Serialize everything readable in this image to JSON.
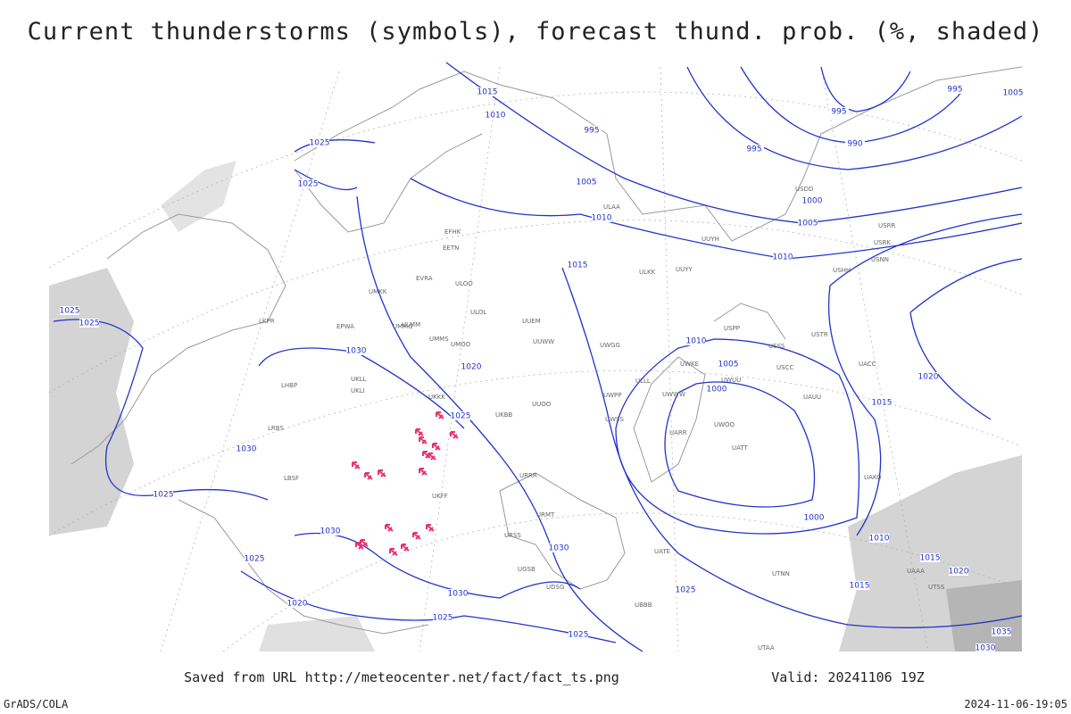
{
  "title": "Current thunderstorms (symbols), forecast thund. prob. (%, shaded)",
  "footer": {
    "source": "Saved from URL http://meteocenter.net/fact/fact_ts.png",
    "valid": "Valid: 20241106 19Z",
    "left": "GrADS/COLA",
    "right": "2024-11-06-19:05"
  },
  "isobar_labels": [
    1015,
    1010,
    995,
    995,
    995,
    1005,
    990,
    995,
    1005,
    1010,
    1000,
    1005,
    1010,
    1015,
    1025,
    1025,
    1025,
    1025,
    1030,
    1010,
    1005,
    1000,
    1020,
    1025,
    1020,
    1015,
    1030,
    1025,
    1030,
    1030,
    1025,
    1030,
    1020,
    1025,
    1025,
    1025,
    1010,
    1000,
    1015,
    1020,
    1015,
    1035,
    1030
  ],
  "stations": [
    "ULOO",
    "ULOL",
    "UUEM",
    "UUWW",
    "UMMG",
    "UMMS",
    "UMOO",
    "UKKK",
    "UKLL",
    "UKLI",
    "EPWA",
    "LKPR",
    "LHBP",
    "LRBS",
    "LBSF",
    "UUOO",
    "UKBB",
    "UKFF",
    "URRR",
    "URSS",
    "URMT",
    "UGSB",
    "UDSG",
    "UBBB",
    "UATE",
    "UATT",
    "UARR",
    "UWOO",
    "UWKE",
    "UWUU",
    "UWWW",
    "UWSS",
    "UWPP",
    "UWGG",
    "ULLL",
    "ULAA",
    "UUYY",
    "ULKK",
    "UUYH",
    "USSS",
    "USCC",
    "USDD",
    "USRR",
    "USRK",
    "USNN",
    "USHH",
    "USTR",
    "UACC",
    "UAKO",
    "UAAA",
    "UAUU",
    "ULMM",
    "USPP",
    "UTAA",
    "UTNN",
    "UTSS",
    "EFHK",
    "EVRA",
    "EETN",
    "UMKK"
  ]
}
